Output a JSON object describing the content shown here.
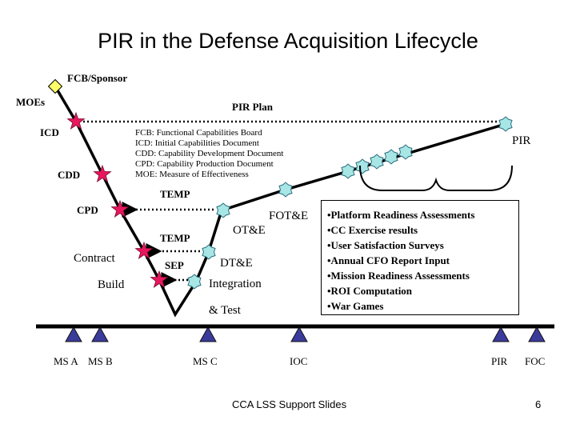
{
  "title": "PIR in the Defense Acquisition Lifecycle",
  "labels": {
    "fcb_sponsor": "FCB/Sponsor",
    "moes": "MOEs",
    "icd": "ICD",
    "cdd": "CDD",
    "cpd": "CPD",
    "pir_plan": "PIR Plan",
    "temp1": "TEMP",
    "temp2": "TEMP",
    "sep": "SEP",
    "contract": "Contract",
    "build": "Build",
    "dte": "DT&E",
    "integration": "Integration",
    "and_test": "& Test",
    "ote": "OT&E",
    "fote": "FOT&E",
    "pir_top": "PIR"
  },
  "legend": [
    "FCB: Functional Capabilities Board",
    "ICD:  Initial Capabilities Document",
    "CDD: Capability Development Document",
    "CPD: Capability Production Document",
    "MOE: Measure of Effectiveness"
  ],
  "pir_activities": [
    "•Platform Readiness Assessments",
    "•CC Exercise results",
    "•User Satisfaction Surveys",
    "•Annual CFO Report Input",
    "•Mission Readiness Assessments",
    "•ROI Computation",
    "•War Games"
  ],
  "milestones": {
    "ms_a": "MS A",
    "ms_b": "MS B",
    "ms_c": "MS C",
    "ioc": "IOC",
    "pir": "PIR",
    "foc": "FOC"
  },
  "footer": {
    "left": "CCA LSS Support Slides",
    "page": "6"
  },
  "colors": {
    "star": "#e8175d",
    "gear": "#a8e6e6",
    "triangle": "#3b3b9c",
    "diamond": "#ffff66"
  }
}
